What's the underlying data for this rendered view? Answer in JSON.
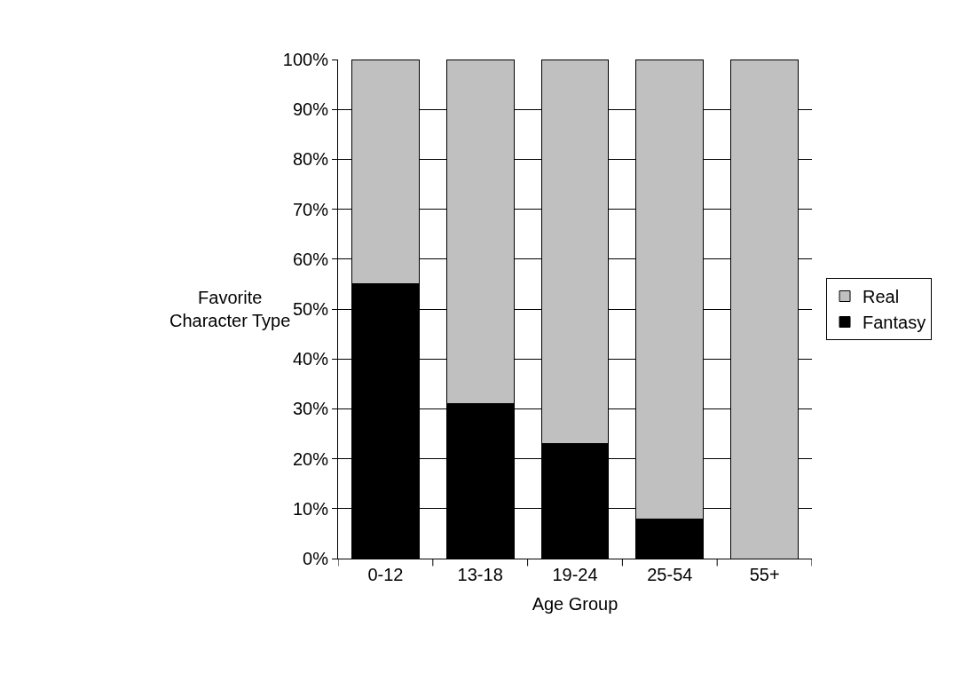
{
  "chart_data": {
    "type": "bar",
    "stacked": true,
    "xlabel": "Age Group",
    "ylabel": "Favorite\nCharacter Type",
    "categories": [
      "0-12",
      "13-18",
      "19-24",
      "25-54",
      "55+"
    ],
    "series": [
      {
        "name": "Fantasy",
        "color": "#000000",
        "values": [
          55,
          31,
          23,
          8,
          0
        ]
      },
      {
        "name": "Real",
        "color": "#c0c0c0",
        "values": [
          45,
          69,
          77,
          92,
          100
        ]
      }
    ],
    "ylim": [
      0,
      100
    ],
    "yticks": [
      {
        "value": 0,
        "label": "0%"
      },
      {
        "value": 10,
        "label": "10%"
      },
      {
        "value": 20,
        "label": "20%"
      },
      {
        "value": 30,
        "label": "30%"
      },
      {
        "value": 40,
        "label": "40%"
      },
      {
        "value": 50,
        "label": "50%"
      },
      {
        "value": 60,
        "label": "60%"
      },
      {
        "value": 70,
        "label": "70%"
      },
      {
        "value": 80,
        "label": "80%"
      },
      {
        "value": 90,
        "label": "90%"
      },
      {
        "value": 100,
        "label": "100%"
      }
    ],
    "grid": "y",
    "legend": "right"
  }
}
